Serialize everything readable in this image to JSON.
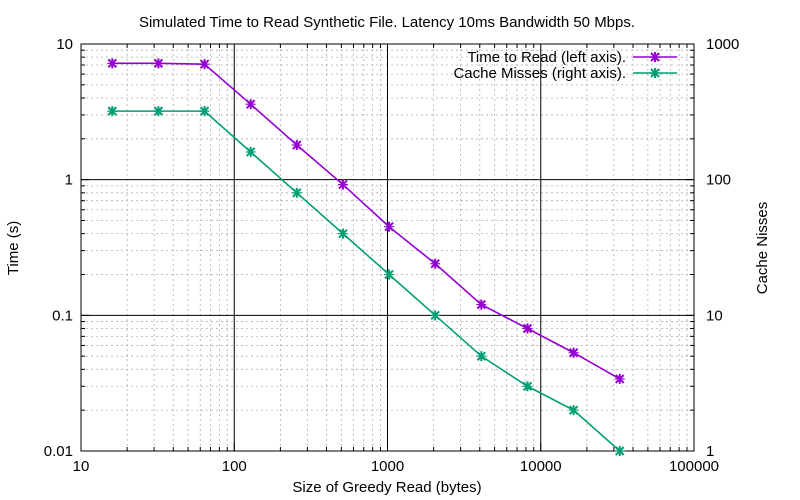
{
  "chart_data": {
    "type": "line",
    "title": "Simulated Time to Read Synthetic File. Latency 10ms Bandwidth 50 Mbps.",
    "xlabel": "Size of Greedy Read (bytes)",
    "ylabel": "Time (s)",
    "y2label": "Cache Nisses",
    "xscale": "log",
    "yscale": "log",
    "y2scale": "log",
    "xlim": [
      10,
      100000
    ],
    "ylim": [
      0.01,
      10
    ],
    "y2lim": [
      1,
      1000
    ],
    "grid": true,
    "legend": "top-right",
    "x_ticks": [
      "10",
      "100",
      "1000",
      "10000",
      "100000"
    ],
    "y_ticks": [
      "0.01",
      "0.1",
      "1",
      "10"
    ],
    "y2_ticks": [
      "1",
      "10",
      "100",
      "1000"
    ],
    "x": [
      16,
      32,
      64,
      128,
      256,
      512,
      1024,
      2048,
      4096,
      8192,
      16384,
      32768
    ],
    "series": [
      {
        "name": "Time to Read (left axis).",
        "axis": "left",
        "color": "#9400d3",
        "values": [
          7.2,
          7.2,
          7.1,
          3.6,
          1.8,
          0.92,
          0.45,
          0.24,
          0.12,
          0.08,
          0.053,
          0.034
        ]
      },
      {
        "name": "Cache Misses (right axis).",
        "axis": "right",
        "color": "#009e73",
        "values": [
          320,
          320,
          320,
          160,
          80,
          40,
          20,
          10,
          5,
          3,
          2,
          1
        ]
      }
    ]
  }
}
